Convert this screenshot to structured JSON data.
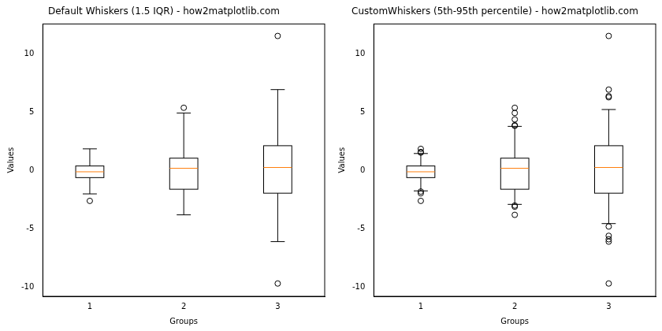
{
  "chart_data": [
    {
      "type": "boxplot",
      "title": "Default Whiskers (1.5 IQR) - how2matplotlib.com",
      "x_label": "Groups",
      "y_label": "Values",
      "x": [
        1,
        2,
        3
      ],
      "boxes": [
        {
          "whislo": -2.0,
          "q1": -0.6,
          "median": -0.1,
          "q3": 0.4,
          "whishi": 1.87,
          "fliers": [
            -2.6
          ]
        },
        {
          "whislo": -3.8,
          "q1": -1.6,
          "median": 0.2,
          "q3": 1.07,
          "whishi": 4.95,
          "fliers": [
            5.4
          ]
        },
        {
          "whislo": -6.1,
          "q1": -1.94,
          "median": 0.27,
          "q3": 2.14,
          "whishi": 6.96,
          "fliers": [
            11.57,
            -9.7
          ]
        }
      ],
      "xlim": [
        0.5,
        3.5
      ],
      "xticks": [
        1,
        2,
        3
      ],
      "ylim": [
        -10.8,
        12.6
      ],
      "yticks": [
        -10,
        -5,
        0,
        5,
        10
      ],
      "grid": false,
      "color": "#000000"
    },
    {
      "type": "boxplot",
      "title": "CustomWhiskers (5th-95th percentile) - how2matplotlib.com",
      "x_label": "Groups",
      "y_label": "Values",
      "x": [
        1,
        2,
        3
      ],
      "boxes": [
        {
          "whislo": -1.74,
          "q1": -0.6,
          "median": -0.1,
          "q3": 0.4,
          "whishi": 1.47,
          "fliers": [
            1.87,
            1.6,
            1.55,
            -1.8,
            -1.95,
            -2.6
          ]
        },
        {
          "whislo": -2.9,
          "q1": -1.6,
          "median": 0.2,
          "q3": 1.07,
          "whishi": 3.8,
          "fliers": [
            5.4,
            4.95,
            4.4,
            3.9,
            3.85,
            -3.0,
            -3.1,
            -3.8
          ]
        },
        {
          "whislo": -4.55,
          "q1": -1.94,
          "median": 0.27,
          "q3": 2.14,
          "whishi": 5.25,
          "fliers": [
            11.57,
            6.96,
            6.4,
            6.3,
            -4.8,
            -5.6,
            -5.9,
            -6.1,
            -9.7
          ]
        }
      ],
      "xlim": [
        0.5,
        3.5
      ],
      "xticks": [
        1,
        2,
        3
      ],
      "ylim": [
        -10.8,
        12.6
      ],
      "yticks": [
        -10,
        -5,
        0,
        5,
        10
      ],
      "grid": false,
      "color": "#000000"
    }
  ]
}
